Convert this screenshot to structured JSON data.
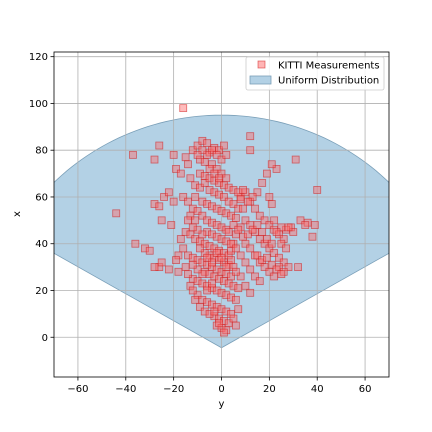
{
  "chart_data": {
    "type": "scatter",
    "title": "",
    "xlabel": "y",
    "ylabel": "x",
    "xlim": [
      -70,
      70
    ],
    "ylim": [
      -17,
      122
    ],
    "xticks": [
      -60,
      -40,
      -20,
      0,
      20,
      40,
      60
    ],
    "yticks": [
      0,
      20,
      40,
      60,
      80,
      100,
      120
    ],
    "grid": true,
    "legend_position": "top-right",
    "region": {
      "name": "Uniform Distribution",
      "shape": "sector",
      "apex": [
        0,
        -4.5
      ],
      "radius": 99.5,
      "half_angle_deg": 60,
      "fill": "#b3d1e5",
      "edge": "#7a9fb8"
    },
    "series": [
      {
        "name": "KITTI Measurements",
        "marker": "square",
        "fill": "#ff6b6b",
        "edge": "#d11a1a",
        "points": [
          [
            -16,
            98
          ],
          [
            -26,
            82
          ],
          [
            -37,
            78
          ],
          [
            -28,
            76
          ],
          [
            -44,
            53
          ],
          [
            -36,
            40
          ],
          [
            -32,
            38
          ],
          [
            -30,
            37
          ],
          [
            -28,
            57
          ],
          [
            -26,
            56
          ],
          [
            -24,
            60
          ],
          [
            -25,
            50
          ],
          [
            -22,
            62
          ],
          [
            -20,
            58
          ],
          [
            -21,
            48
          ],
          [
            -26,
            30
          ],
          [
            -28,
            30
          ],
          [
            -25,
            32
          ],
          [
            -22,
            29
          ],
          [
            -18,
            28
          ],
          [
            -20,
            78
          ],
          [
            -19,
            72
          ],
          [
            -17,
            70
          ],
          [
            -15,
            77
          ],
          [
            -14,
            74
          ],
          [
            -13,
            68
          ],
          [
            -12,
            80
          ],
          [
            -10,
            82
          ],
          [
            -8,
            84
          ],
          [
            -6,
            83
          ],
          [
            -5,
            79
          ],
          [
            -3,
            81
          ],
          [
            -1,
            80
          ],
          [
            1,
            82
          ],
          [
            -9,
            76
          ],
          [
            -7,
            75
          ],
          [
            -4,
            74
          ],
          [
            -2,
            72
          ],
          [
            0,
            70
          ],
          [
            2,
            68
          ],
          [
            -11,
            65
          ],
          [
            -9,
            64
          ],
          [
            -7,
            66
          ],
          [
            -5,
            63
          ],
          [
            -3,
            62
          ],
          [
            -1,
            61
          ],
          [
            1,
            60
          ],
          [
            3,
            58
          ],
          [
            5,
            57
          ],
          [
            7,
            55
          ],
          [
            -16,
            60
          ],
          [
            -14,
            58
          ],
          [
            -12,
            55
          ],
          [
            -10,
            54
          ],
          [
            -8,
            52
          ],
          [
            -6,
            50
          ],
          [
            -4,
            49
          ],
          [
            -2,
            48
          ],
          [
            0,
            47
          ],
          [
            2,
            46
          ],
          [
            -15,
            45
          ],
          [
            -13,
            44
          ],
          [
            -11,
            42
          ],
          [
            -9,
            41
          ],
          [
            -7,
            40
          ],
          [
            -5,
            39
          ],
          [
            -3,
            38
          ],
          [
            -1,
            37
          ],
          [
            1,
            36
          ],
          [
            3,
            35
          ],
          [
            -14,
            35
          ],
          [
            -12,
            34
          ],
          [
            -10,
            33
          ],
          [
            -8,
            32
          ],
          [
            -6,
            31
          ],
          [
            -4,
            30
          ],
          [
            -2,
            29
          ],
          [
            0,
            28
          ],
          [
            2,
            27
          ],
          [
            4,
            26
          ],
          [
            -12,
            25
          ],
          [
            -10,
            24
          ],
          [
            -8,
            23
          ],
          [
            -6,
            22
          ],
          [
            -4,
            21
          ],
          [
            -2,
            20
          ],
          [
            0,
            19
          ],
          [
            2,
            18
          ],
          [
            4,
            17
          ],
          [
            6,
            16
          ],
          [
            -10,
            18
          ],
          [
            -8,
            16
          ],
          [
            -6,
            15
          ],
          [
            -4,
            14
          ],
          [
            -2,
            13
          ],
          [
            0,
            12
          ],
          [
            2,
            11
          ],
          [
            4,
            10
          ],
          [
            -3,
            9
          ],
          [
            -1,
            8
          ],
          [
            1,
            7
          ],
          [
            3,
            6
          ],
          [
            -2,
            5
          ],
          [
            0,
            4
          ],
          [
            2,
            3
          ],
          [
            1,
            2
          ],
          [
            -1,
            6
          ],
          [
            5,
            8
          ],
          [
            7,
            12
          ],
          [
            6,
            5
          ],
          [
            8,
            60
          ],
          [
            10,
            62
          ],
          [
            12,
            58
          ],
          [
            14,
            55
          ],
          [
            16,
            52
          ],
          [
            18,
            50
          ],
          [
            20,
            48
          ],
          [
            22,
            46
          ],
          [
            24,
            44
          ],
          [
            26,
            42
          ],
          [
            10,
            50
          ],
          [
            12,
            48
          ],
          [
            14,
            45
          ],
          [
            16,
            42
          ],
          [
            18,
            40
          ],
          [
            20,
            38
          ],
          [
            22,
            36
          ],
          [
            24,
            34
          ],
          [
            26,
            32
          ],
          [
            28,
            30
          ],
          [
            10,
            40
          ],
          [
            12,
            38
          ],
          [
            14,
            35
          ],
          [
            16,
            32
          ],
          [
            18,
            30
          ],
          [
            20,
            28
          ],
          [
            22,
            26
          ],
          [
            24,
            30
          ],
          [
            26,
            28
          ],
          [
            29,
            47
          ],
          [
            31,
            76
          ],
          [
            40,
            63
          ],
          [
            39,
            48
          ],
          [
            36,
            49
          ],
          [
            33,
            50
          ],
          [
            30,
            45
          ],
          [
            27,
            46
          ],
          [
            25,
            47
          ],
          [
            23,
            72
          ],
          [
            21,
            74
          ],
          [
            19,
            70
          ],
          [
            17,
            66
          ],
          [
            15,
            62
          ],
          [
            13,
            60
          ],
          [
            11,
            58
          ],
          [
            9,
            55
          ],
          [
            8,
            47
          ],
          [
            6,
            44
          ],
          [
            5,
            40
          ],
          [
            4,
            37
          ],
          [
            -6,
            45
          ],
          [
            -4,
            44
          ],
          [
            -2,
            43
          ],
          [
            0,
            42
          ],
          [
            2,
            41
          ],
          [
            4,
            40
          ],
          [
            -5,
            35
          ],
          [
            -3,
            34
          ],
          [
            -1,
            33
          ],
          [
            1,
            32
          ],
          [
            3,
            31
          ],
          [
            5,
            30
          ],
          [
            -7,
            28
          ],
          [
            -5,
            27
          ],
          [
            -3,
            26
          ],
          [
            -1,
            25
          ],
          [
            1,
            24
          ],
          [
            3,
            23
          ],
          [
            5,
            22
          ],
          [
            7,
            21
          ],
          [
            -9,
            70
          ],
          [
            -7,
            69
          ],
          [
            -5,
            68
          ],
          [
            -3,
            67
          ],
          [
            -1,
            66
          ],
          [
            1,
            65
          ],
          [
            3,
            64
          ],
          [
            5,
            63
          ],
          [
            7,
            62
          ],
          [
            -11,
            60
          ],
          [
            -8,
            58
          ],
          [
            -6,
            57
          ],
          [
            -4,
            56
          ],
          [
            -2,
            55
          ],
          [
            0,
            54
          ],
          [
            2,
            53
          ],
          [
            4,
            52
          ],
          [
            6,
            51
          ],
          [
            -13,
            52
          ],
          [
            -11,
            50
          ],
          [
            12,
            86
          ],
          [
            12,
            80
          ],
          [
            9,
            63
          ],
          [
            8,
            59
          ],
          [
            20,
            60
          ],
          [
            21,
            57
          ],
          [
            22,
            50
          ],
          [
            23,
            45
          ],
          [
            25,
            40
          ],
          [
            27,
            38
          ],
          [
            -17,
            42
          ],
          [
            -16,
            38
          ],
          [
            -18,
            35
          ],
          [
            -19,
            33
          ],
          [
            -15,
            30
          ],
          [
            -14,
            27
          ],
          [
            -13,
            22
          ],
          [
            -12,
            20
          ],
          [
            -11,
            16
          ],
          [
            -9,
            13
          ],
          [
            -7,
            11
          ],
          [
            -5,
            10
          ],
          [
            -3,
            11
          ],
          [
            -6,
            20
          ],
          [
            -4,
            23
          ],
          [
            -8,
            27
          ],
          [
            -10,
            29
          ],
          [
            -12,
            31
          ],
          [
            -7,
            36
          ],
          [
            -9,
            38
          ],
          [
            3,
            45
          ],
          [
            5,
            48
          ],
          [
            7,
            46
          ],
          [
            9,
            43
          ],
          [
            11,
            44
          ],
          [
            13,
            46
          ],
          [
            15,
            48
          ],
          [
            17,
            45
          ],
          [
            19,
            42
          ],
          [
            21,
            40
          ],
          [
            -4,
            80
          ],
          [
            -6,
            78
          ],
          [
            -8,
            80
          ],
          [
            -10,
            78
          ],
          [
            -2,
            78
          ],
          [
            0,
            76
          ],
          [
            2,
            78
          ],
          [
            -5,
            72
          ],
          [
            -3,
            70
          ],
          [
            -1,
            68
          ],
          [
            6,
            38
          ],
          [
            8,
            35
          ],
          [
            10,
            32
          ],
          [
            12,
            29
          ],
          [
            14,
            26
          ],
          [
            16,
            24
          ],
          [
            8,
            26
          ],
          [
            10,
            22
          ],
          [
            12,
            19
          ],
          [
            6,
            28
          ],
          [
            -2,
            36
          ],
          [
            0,
            34
          ],
          [
            -4,
            32
          ],
          [
            2,
            30
          ],
          [
            4,
            33
          ],
          [
            -6,
            34
          ],
          [
            -8,
            44
          ],
          [
            -10,
            46
          ],
          [
            -12,
            47
          ],
          [
            -14,
            50
          ],
          [
            15,
            35
          ],
          [
            17,
            33
          ],
          [
            19,
            34
          ],
          [
            21,
            31
          ],
          [
            23,
            29
          ],
          [
            25,
            27
          ],
          [
            32,
            30
          ],
          [
            35,
            48
          ],
          [
            38,
            43
          ],
          [
            28,
            47
          ]
        ]
      }
    ]
  },
  "legend": {
    "items": [
      "KITTI Measurements",
      "Uniform Distribution"
    ]
  }
}
